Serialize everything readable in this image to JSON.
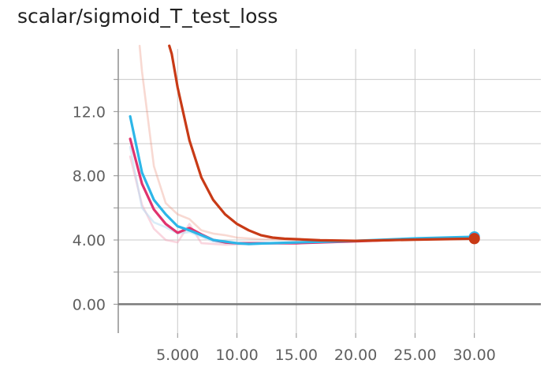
{
  "title": "scalar/sigmoid_T_test_loss",
  "chart_data": {
    "type": "line",
    "title": "scalar/sigmoid_T_test_loss",
    "xlabel": "",
    "ylabel": "",
    "xlim": [
      0,
      35.6
    ],
    "ylim": [
      -1.8,
      15.9
    ],
    "grid": true,
    "x_ticks": [
      5,
      10,
      15,
      20,
      25,
      30
    ],
    "x_tick_labels": [
      "5.000",
      "10.00",
      "15.00",
      "20.00",
      "25.00",
      "30.00"
    ],
    "y_ticks": [
      0,
      4,
      8,
      12
    ],
    "y_tick_labels": [
      "0.00",
      "4.00",
      "8.00",
      "12.0"
    ],
    "y_minor_ticks": [
      2,
      6,
      10,
      14
    ],
    "series": [
      {
        "color": "#e88a72",
        "role": "raw",
        "opacity": 0.32,
        "points": [
          [
            1.8,
            16.5
          ],
          [
            2.0,
            14.5
          ],
          [
            3.0,
            8.6
          ],
          [
            4.0,
            6.3
          ],
          [
            5.0,
            5.6
          ],
          [
            6.0,
            5.3
          ],
          [
            7.0,
            4.6
          ],
          [
            8.0,
            4.4
          ],
          [
            9.0,
            4.3
          ],
          [
            10.0,
            4.15
          ],
          [
            11.0,
            4.1
          ],
          [
            12.0,
            4.05
          ],
          [
            15.0,
            4.0
          ],
          [
            20.0,
            3.95
          ],
          [
            25.0,
            4.05
          ],
          [
            30.0,
            4.12
          ]
        ]
      },
      {
        "color": "#f3a3b8",
        "role": "raw",
        "opacity": 0.45,
        "points": [
          [
            1.0,
            9.2
          ],
          [
            2.0,
            6.2
          ],
          [
            3.0,
            4.7
          ],
          [
            4.0,
            4.0
          ],
          [
            5.0,
            3.85
          ],
          [
            6.0,
            5.0
          ],
          [
            7.0,
            3.8
          ],
          [
            8.0,
            3.75
          ],
          [
            9.0,
            3.7
          ],
          [
            10.0,
            3.72
          ],
          [
            12.0,
            3.8
          ],
          [
            15.0,
            3.8
          ],
          [
            20.0,
            3.9
          ],
          [
            25.0,
            4.05
          ],
          [
            30.0,
            4.15
          ]
        ]
      },
      {
        "color": "#b9dcf2",
        "role": "raw",
        "opacity": 0.55,
        "points": [
          [
            1.0,
            9.8
          ],
          [
            2.0,
            6.0
          ],
          [
            3.0,
            5.1
          ],
          [
            4.0,
            4.8
          ],
          [
            5.0,
            4.4
          ],
          [
            6.0,
            4.5
          ],
          [
            7.0,
            4.2
          ],
          [
            8.0,
            3.9
          ],
          [
            9.0,
            3.8
          ],
          [
            10.0,
            3.75
          ],
          [
            12.0,
            3.8
          ],
          [
            15.0,
            3.85
          ],
          [
            20.0,
            3.95
          ],
          [
            25.0,
            4.1
          ],
          [
            30.0,
            4.2
          ]
        ]
      },
      {
        "color": "#e0336e",
        "role": "smoothed",
        "opacity": 1,
        "points": [
          [
            1.0,
            10.3
          ],
          [
            2.0,
            7.5
          ],
          [
            3.0,
            5.9
          ],
          [
            4.0,
            5.0
          ],
          [
            5.0,
            4.45
          ],
          [
            6.0,
            4.75
          ],
          [
            7.0,
            4.35
          ],
          [
            8.0,
            4.0
          ],
          [
            9.0,
            3.85
          ],
          [
            10.0,
            3.8
          ],
          [
            12.0,
            3.8
          ],
          [
            15.0,
            3.8
          ],
          [
            20.0,
            3.92
          ],
          [
            25.0,
            4.05
          ],
          [
            30.0,
            4.15
          ]
        ]
      },
      {
        "color": "#2db6e8",
        "role": "smoothed",
        "opacity": 1,
        "points": [
          [
            1.0,
            11.7
          ],
          [
            2.0,
            8.2
          ],
          [
            3.0,
            6.5
          ],
          [
            4.0,
            5.6
          ],
          [
            5.0,
            4.85
          ],
          [
            6.0,
            4.6
          ],
          [
            7.0,
            4.3
          ],
          [
            8.0,
            4.0
          ],
          [
            9.0,
            3.9
          ],
          [
            10.0,
            3.8
          ],
          [
            11.0,
            3.75
          ],
          [
            12.0,
            3.78
          ],
          [
            15.0,
            3.85
          ],
          [
            20.0,
            3.95
          ],
          [
            25.0,
            4.1
          ],
          [
            30.0,
            4.2
          ]
        ]
      },
      {
        "color": "#c83a16",
        "role": "smoothed",
        "opacity": 1,
        "points": [
          [
            4.3,
            16.5
          ],
          [
            4.5,
            15.6
          ],
          [
            5.0,
            13.5
          ],
          [
            6.0,
            10.2
          ],
          [
            7.0,
            7.9
          ],
          [
            8.0,
            6.5
          ],
          [
            9.0,
            5.6
          ],
          [
            10.0,
            5.0
          ],
          [
            11.0,
            4.6
          ],
          [
            12.0,
            4.3
          ],
          [
            13.0,
            4.15
          ],
          [
            14.0,
            4.08
          ],
          [
            15.0,
            4.05
          ],
          [
            17.0,
            3.98
          ],
          [
            20.0,
            3.95
          ],
          [
            25.0,
            4.02
          ],
          [
            30.0,
            4.08
          ]
        ]
      }
    ],
    "end_markers": [
      {
        "x": 30,
        "y": 4.2,
        "color": "#2db6e8"
      },
      {
        "x": 30,
        "y": 4.1,
        "color": "#e0336e"
      },
      {
        "x": 30,
        "y": 4.08,
        "color": "#c83a16"
      }
    ]
  }
}
